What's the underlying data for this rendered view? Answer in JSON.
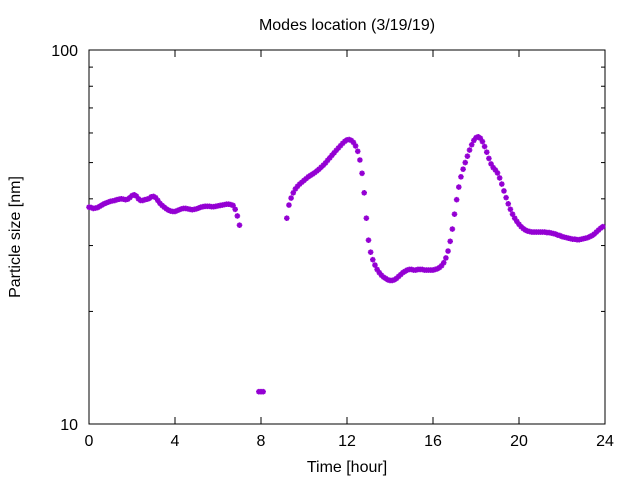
{
  "chart_data": {
    "type": "scatter",
    "title": "Modes location (3/19/19)",
    "xlabel": "Time [hour]",
    "ylabel": "Particle size [nm]",
    "xlim": [
      0,
      24
    ],
    "ylim": [
      10,
      100
    ],
    "yscale": "log",
    "grid": false,
    "marker_color": "#9400d3",
    "x_ticks": [
      0,
      4,
      8,
      12,
      16,
      20,
      24
    ],
    "x_tick_labels": [
      "0",
      "4",
      "8",
      "12",
      "16",
      "20",
      "24"
    ],
    "y_ticks": [
      10,
      100
    ],
    "y_tick_labels": [
      "10",
      "100"
    ],
    "series": [
      {
        "points": [
          [
            0.0,
            38.0
          ],
          [
            0.1,
            37.9
          ],
          [
            0.2,
            37.7
          ],
          [
            0.3,
            37.8
          ],
          [
            0.4,
            37.9
          ],
          [
            0.5,
            38.2
          ],
          [
            0.6,
            38.5
          ],
          [
            0.7,
            38.8
          ],
          [
            0.8,
            39.0
          ],
          [
            0.9,
            39.2
          ],
          [
            1.0,
            39.4
          ],
          [
            1.1,
            39.5
          ],
          [
            1.2,
            39.6
          ],
          [
            1.3,
            39.8
          ],
          [
            1.4,
            39.9
          ],
          [
            1.5,
            40.0
          ],
          [
            1.6,
            39.9
          ],
          [
            1.7,
            39.8
          ],
          [
            1.8,
            39.9
          ],
          [
            1.9,
            40.3
          ],
          [
            2.0,
            40.8
          ],
          [
            2.1,
            41.0
          ],
          [
            2.2,
            40.7
          ],
          [
            2.3,
            40.0
          ],
          [
            2.4,
            39.6
          ],
          [
            2.5,
            39.6
          ],
          [
            2.6,
            39.8
          ],
          [
            2.7,
            39.9
          ],
          [
            2.8,
            40.1
          ],
          [
            2.9,
            40.5
          ],
          [
            3.0,
            40.6
          ],
          [
            3.1,
            40.3
          ],
          [
            3.2,
            39.6
          ],
          [
            3.3,
            38.9
          ],
          [
            3.4,
            38.4
          ],
          [
            3.5,
            38.0
          ],
          [
            3.6,
            37.6
          ],
          [
            3.7,
            37.3
          ],
          [
            3.8,
            37.1
          ],
          [
            3.9,
            37.0
          ],
          [
            4.0,
            37.0
          ],
          [
            4.1,
            37.2
          ],
          [
            4.2,
            37.4
          ],
          [
            4.3,
            37.6
          ],
          [
            4.4,
            37.7
          ],
          [
            4.5,
            37.7
          ],
          [
            4.6,
            37.6
          ],
          [
            4.7,
            37.5
          ],
          [
            4.8,
            37.4
          ],
          [
            4.9,
            37.5
          ],
          [
            5.0,
            37.6
          ],
          [
            5.1,
            37.8
          ],
          [
            5.2,
            38.0
          ],
          [
            5.3,
            38.1
          ],
          [
            5.4,
            38.2
          ],
          [
            5.5,
            38.2
          ],
          [
            5.6,
            38.2
          ],
          [
            5.7,
            38.1
          ],
          [
            5.8,
            38.1
          ],
          [
            5.9,
            38.2
          ],
          [
            6.0,
            38.3
          ],
          [
            6.1,
            38.4
          ],
          [
            6.2,
            38.5
          ],
          [
            6.3,
            38.6
          ],
          [
            6.4,
            38.7
          ],
          [
            6.5,
            38.7
          ],
          [
            6.6,
            38.6
          ],
          [
            6.7,
            38.4
          ],
          [
            6.8,
            37.5
          ],
          [
            6.9,
            36.0
          ],
          [
            7.0,
            34.0
          ],
          [
            7.9,
            12.2
          ],
          [
            8.0,
            12.2
          ],
          [
            8.1,
            12.2
          ],
          [
            9.2,
            35.5
          ],
          [
            9.3,
            38.5
          ],
          [
            9.4,
            40.2
          ],
          [
            9.5,
            41.5
          ],
          [
            9.6,
            42.5
          ],
          [
            9.7,
            43.2
          ],
          [
            9.8,
            43.8
          ],
          [
            9.9,
            44.3
          ],
          [
            10.0,
            44.8
          ],
          [
            10.1,
            45.3
          ],
          [
            10.2,
            45.8
          ],
          [
            10.3,
            46.2
          ],
          [
            10.4,
            46.6
          ],
          [
            10.5,
            47.0
          ],
          [
            10.6,
            47.5
          ],
          [
            10.7,
            48.0
          ],
          [
            10.8,
            48.6
          ],
          [
            10.9,
            49.2
          ],
          [
            11.0,
            49.9
          ],
          [
            11.1,
            50.7
          ],
          [
            11.2,
            51.5
          ],
          [
            11.3,
            52.3
          ],
          [
            11.4,
            53.1
          ],
          [
            11.5,
            53.9
          ],
          [
            11.6,
            54.7
          ],
          [
            11.7,
            55.5
          ],
          [
            11.8,
            56.3
          ],
          [
            11.9,
            57.0
          ],
          [
            12.0,
            57.5
          ],
          [
            12.1,
            57.6
          ],
          [
            12.2,
            57.3
          ],
          [
            12.3,
            56.6
          ],
          [
            12.4,
            55.4
          ],
          [
            12.5,
            53.6
          ],
          [
            12.6,
            50.8
          ],
          [
            12.7,
            46.8
          ],
          [
            12.8,
            41.5
          ],
          [
            12.9,
            35.5
          ],
          [
            13.0,
            31.0
          ],
          [
            13.1,
            28.8
          ],
          [
            13.2,
            27.5
          ],
          [
            13.3,
            26.6
          ],
          [
            13.4,
            25.9
          ],
          [
            13.5,
            25.4
          ],
          [
            13.6,
            25.0
          ],
          [
            13.7,
            24.7
          ],
          [
            13.8,
            24.5
          ],
          [
            13.9,
            24.3
          ],
          [
            14.0,
            24.2
          ],
          [
            14.1,
            24.2
          ],
          [
            14.2,
            24.3
          ],
          [
            14.3,
            24.5
          ],
          [
            14.4,
            24.8
          ],
          [
            14.5,
            25.1
          ],
          [
            14.6,
            25.4
          ],
          [
            14.7,
            25.6
          ],
          [
            14.8,
            25.8
          ],
          [
            14.9,
            25.9
          ],
          [
            15.0,
            25.9
          ],
          [
            15.1,
            25.8
          ],
          [
            15.2,
            25.8
          ],
          [
            15.3,
            25.9
          ],
          [
            15.4,
            25.9
          ],
          [
            15.5,
            25.9
          ],
          [
            15.6,
            25.8
          ],
          [
            15.7,
            25.8
          ],
          [
            15.8,
            25.8
          ],
          [
            15.9,
            25.8
          ],
          [
            16.0,
            25.8
          ],
          [
            16.1,
            25.9
          ],
          [
            16.2,
            26.0
          ],
          [
            16.3,
            26.2
          ],
          [
            16.4,
            26.5
          ],
          [
            16.5,
            27.0
          ],
          [
            16.6,
            27.8
          ],
          [
            16.7,
            29.0
          ],
          [
            16.8,
            30.8
          ],
          [
            16.9,
            33.2
          ],
          [
            17.0,
            36.4
          ],
          [
            17.1,
            39.8
          ],
          [
            17.2,
            43.0
          ],
          [
            17.3,
            45.8
          ],
          [
            17.4,
            48.0
          ],
          [
            17.5,
            50.0
          ],
          [
            17.6,
            52.0
          ],
          [
            17.7,
            54.0
          ],
          [
            17.8,
            55.8
          ],
          [
            17.9,
            57.3
          ],
          [
            18.0,
            58.3
          ],
          [
            18.1,
            58.6
          ],
          [
            18.2,
            58.1
          ],
          [
            18.3,
            56.9
          ],
          [
            18.4,
            55.2
          ],
          [
            18.5,
            53.3
          ],
          [
            18.6,
            51.3
          ],
          [
            18.7,
            49.6
          ],
          [
            18.8,
            48.5
          ],
          [
            18.9,
            47.8
          ],
          [
            19.0,
            46.9
          ],
          [
            19.1,
            45.5
          ],
          [
            19.2,
            43.8
          ],
          [
            19.3,
            42.0
          ],
          [
            19.4,
            40.3
          ],
          [
            19.5,
            38.8
          ],
          [
            19.6,
            37.5
          ],
          [
            19.7,
            36.4
          ],
          [
            19.8,
            35.5
          ],
          [
            19.9,
            34.8
          ],
          [
            20.0,
            34.2
          ],
          [
            20.1,
            33.7
          ],
          [
            20.2,
            33.3
          ],
          [
            20.3,
            33.0
          ],
          [
            20.4,
            32.8
          ],
          [
            20.5,
            32.7
          ],
          [
            20.6,
            32.6
          ],
          [
            20.7,
            32.6
          ],
          [
            20.8,
            32.6
          ],
          [
            20.9,
            32.6
          ],
          [
            21.0,
            32.6
          ],
          [
            21.1,
            32.6
          ],
          [
            21.2,
            32.6
          ],
          [
            21.3,
            32.5
          ],
          [
            21.4,
            32.5
          ],
          [
            21.5,
            32.4
          ],
          [
            21.6,
            32.3
          ],
          [
            21.7,
            32.2
          ],
          [
            21.8,
            32.0
          ],
          [
            21.9,
            31.9
          ],
          [
            22.0,
            31.7
          ],
          [
            22.1,
            31.6
          ],
          [
            22.2,
            31.5
          ],
          [
            22.3,
            31.4
          ],
          [
            22.4,
            31.3
          ],
          [
            22.5,
            31.2
          ],
          [
            22.6,
            31.2
          ],
          [
            22.7,
            31.1
          ],
          [
            22.8,
            31.1
          ],
          [
            22.9,
            31.2
          ],
          [
            23.0,
            31.3
          ],
          [
            23.1,
            31.4
          ],
          [
            23.2,
            31.5
          ],
          [
            23.3,
            31.7
          ],
          [
            23.4,
            31.9
          ],
          [
            23.5,
            32.2
          ],
          [
            23.6,
            32.6
          ],
          [
            23.7,
            33.0
          ],
          [
            23.8,
            33.4
          ],
          [
            23.9,
            33.7
          ]
        ]
      }
    ]
  }
}
